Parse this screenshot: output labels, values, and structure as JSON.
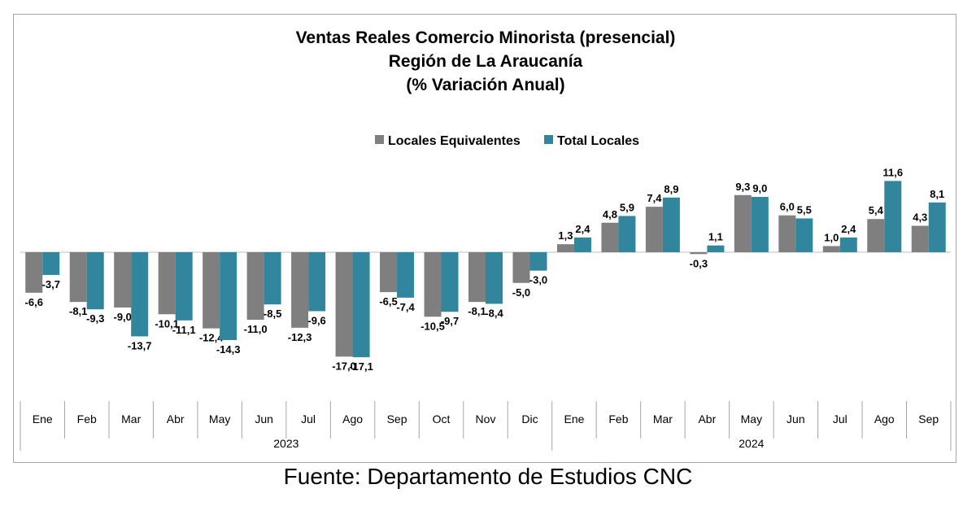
{
  "chart_data": {
    "type": "bar",
    "title": [
      "Ventas Reales Comercio Minorista (presencial)",
      "Región de La Araucanía",
      "(% Variación Anual)"
    ],
    "categories": [
      "Ene",
      "Feb",
      "Mar",
      "Abr",
      "May",
      "Jun",
      "Jul",
      "Ago",
      "Sep",
      "Oct",
      "Nov",
      "Dic",
      "Ene",
      "Feb",
      "Mar",
      "Abr",
      "May",
      "Jun",
      "Jul",
      "Ago",
      "Sep"
    ],
    "year_groups": [
      {
        "label": "2023",
        "count": 12
      },
      {
        "label": "2024",
        "count": 9
      }
    ],
    "series": [
      {
        "name": "Locales Equivalentes",
        "color": "#7f7f7f",
        "values": [
          -6.6,
          -8.1,
          -9.0,
          -10.1,
          -12.4,
          -11.0,
          -12.3,
          -17.0,
          -6.5,
          -10.5,
          -8.1,
          -5.0,
          1.3,
          4.8,
          7.4,
          -0.3,
          9.3,
          6.0,
          1.0,
          5.4,
          4.3
        ],
        "labels": [
          "-6,6",
          "-8,1",
          "-9,0",
          "-10,1",
          "-12,4",
          "-11,0",
          "-12,3",
          "-17,0",
          "-6,5",
          "-10,5",
          "-8,1",
          "-5,0",
          "1,3",
          "4,8",
          "7,4",
          "-0,3",
          "9,3",
          "6,0",
          "1,0",
          "5,4",
          "4,3"
        ]
      },
      {
        "name": "Total Locales",
        "color": "#31859c",
        "values": [
          -3.7,
          -9.3,
          -13.7,
          -11.1,
          -14.3,
          -8.5,
          -9.6,
          -17.1,
          -7.4,
          -9.7,
          -8.4,
          -3.0,
          2.4,
          5.9,
          8.9,
          1.1,
          9.0,
          5.5,
          2.4,
          11.6,
          8.1
        ],
        "labels": [
          "-3,7",
          "-9,3",
          "-13,7",
          "-11,1",
          "-14,3",
          "-8,5",
          "-9,6",
          "-17,1",
          "-7,4",
          "-9,7",
          "-8,4",
          "-3,0",
          "2,4",
          "5,9",
          "8,9",
          "1,1",
          "9,0",
          "5,5",
          "2,4",
          "11,6",
          "8,1"
        ]
      }
    ],
    "legend_position": "top-center",
    "grid": false
  },
  "source": "Fuente: Departamento de Estudios CNC"
}
